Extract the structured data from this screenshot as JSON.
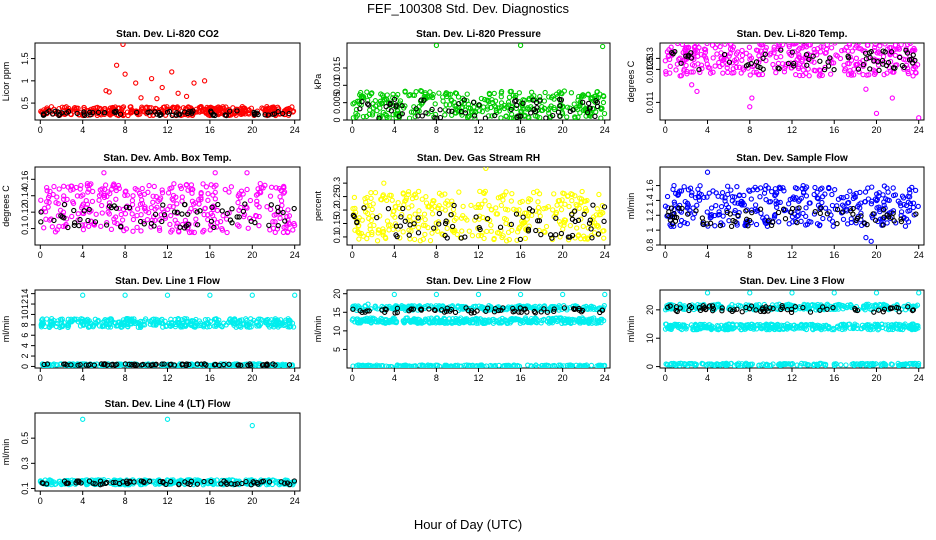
{
  "title": "FEF_100308  Std. Dev. Diagnostics",
  "xlabel": "Hour of Day (UTC)",
  "colors": {
    "black": "#000000",
    "red": "#ff0000",
    "green": "#00cc00",
    "magenta": "#ff00ff",
    "yellow": "#ffff00",
    "blue": "#0000ff",
    "cyan": "#00eeee"
  },
  "chart_data": [
    {
      "type": "scatter",
      "title": "Stan. Dev. Li-820 CO2",
      "ylabel": "Licor ppm",
      "color": "#ff0000",
      "ylim": [
        0.12,
        1.85
      ],
      "yticks": [
        0.5,
        1.0,
        1.5
      ],
      "xlim": [
        -0.5,
        24.5
      ],
      "xticks": [
        0,
        4,
        8,
        12,
        16,
        20,
        24
      ],
      "band": [
        0.22,
        0.42
      ],
      "black_band": [
        0.22,
        0.33
      ],
      "outliers": [
        [
          7.8,
          1.82
        ],
        [
          7.2,
          1.35
        ],
        [
          8.0,
          1.15
        ],
        [
          6.5,
          0.75
        ],
        [
          6.2,
          0.78
        ],
        [
          9.0,
          0.95
        ],
        [
          10.5,
          1.05
        ],
        [
          11.5,
          0.85
        ],
        [
          12.4,
          1.2
        ],
        [
          13.0,
          0.72
        ],
        [
          13.8,
          0.65
        ],
        [
          14.5,
          0.95
        ],
        [
          15.5,
          1.0
        ],
        [
          11.0,
          0.6
        ],
        [
          9.5,
          0.62
        ]
      ]
    },
    {
      "type": "scatter",
      "title": "Stan. Dev. Li-820 Pressure",
      "ylabel": "kPa",
      "color": "#00cc00",
      "ylim": [
        0.0,
        0.0222
      ],
      "yticks": [
        0.0,
        0.005,
        0.01,
        0.015
      ],
      "xlim": [
        -0.5,
        24.5
      ],
      "xticks": [
        0,
        4,
        8,
        12,
        16,
        20,
        24
      ],
      "band": [
        0.0005,
        0.0085
      ],
      "black_band": [
        0.0005,
        0.006
      ],
      "outliers": [
        [
          8.0,
          0.0215
        ],
        [
          16.0,
          0.0215
        ],
        [
          23.8,
          0.0212
        ]
      ]
    },
    {
      "type": "scatter",
      "title": "Stan. Dev. Li-820 Temp.",
      "ylabel": "degrees C",
      "color": "#ff00ff",
      "ylim": [
        0.0102,
        0.0137
      ],
      "yticks": [
        0.011,
        0.0125,
        0.013
      ],
      "xlim": [
        -0.5,
        24.5
      ],
      "xticks": [
        0,
        4,
        8,
        12,
        16,
        20,
        24
      ],
      "band": [
        0.0122,
        0.0137
      ],
      "black_band": [
        0.0124,
        0.0134
      ],
      "outliers": [
        [
          3.0,
          0.0115
        ],
        [
          8.0,
          0.0108
        ],
        [
          8.2,
          0.0112
        ],
        [
          20.0,
          0.0105
        ],
        [
          21.5,
          0.0112
        ],
        [
          24.0,
          0.0103
        ],
        [
          2.5,
          0.0118
        ],
        [
          19.0,
          0.0116
        ]
      ]
    },
    {
      "type": "scatter",
      "title": "Stan. Dev. Amb. Box Temp.",
      "ylabel": "degrees C",
      "color": "#ff00ff",
      "ylim": [
        0.08,
        0.175
      ],
      "yticks": [
        0.1,
        0.12,
        0.14,
        0.16
      ],
      "xlim": [
        -0.5,
        24.5
      ],
      "xticks": [
        0,
        4,
        8,
        12,
        16,
        20,
        24
      ],
      "band": [
        0.095,
        0.155
      ],
      "black_band": [
        0.1,
        0.13
      ],
      "outliers": [
        [
          6.0,
          0.168
        ],
        [
          16.5,
          0.168
        ],
        [
          19.5,
          0.168
        ]
      ]
    },
    {
      "type": "scatter",
      "title": "Stan. Dev. Gas Stream RH",
      "ylabel": "percent",
      "color": "#ffff00",
      "ylim": [
        0.07,
        0.36
      ],
      "yticks": [
        0.1,
        0.15,
        0.2,
        0.25,
        0.3
      ],
      "xlim": [
        -0.5,
        24.5
      ],
      "xticks": [
        0,
        4,
        8,
        12,
        16,
        20,
        24
      ],
      "band": [
        0.085,
        0.27
      ],
      "black_band": [
        0.09,
        0.22
      ],
      "outliers": [
        [
          12.7,
          0.355
        ],
        [
          3.0,
          0.3
        ]
      ]
    },
    {
      "type": "scatter",
      "title": "Stan. Dev. Sample Flow",
      "ylabel": "ml/min",
      "color": "#0000ff",
      "ylim": [
        0.8,
        1.85
      ],
      "yticks": [
        0.8,
        1.0,
        1.2,
        1.4,
        1.6
      ],
      "xlim": [
        -0.5,
        24.5
      ],
      "xticks": [
        0,
        4,
        8,
        12,
        16,
        20,
        24
      ],
      "band": [
        1.05,
        1.6
      ],
      "black_band": [
        1.05,
        1.3
      ],
      "outliers": [
        [
          4.0,
          1.78
        ],
        [
          19.5,
          0.85
        ],
        [
          19.0,
          0.9
        ]
      ]
    },
    {
      "type": "scatter",
      "title": "Stan. Dev. Line 1 Flow",
      "ylabel": "ml/min",
      "color": "#00eeee",
      "ylim": [
        -0.3,
        14.7
      ],
      "yticks": [
        0,
        2,
        4,
        6,
        8,
        10,
        12,
        14
      ],
      "xlim": [
        -0.5,
        24.5
      ],
      "xticks": [
        0,
        4,
        8,
        12,
        16,
        20,
        24
      ],
      "band": [
        7.5,
        9.2
      ],
      "black_band": [
        0.2,
        0.5
      ],
      "low_band": [
        0.1,
        0.5
      ],
      "outliers": [
        [
          4.0,
          13.7
        ],
        [
          8.0,
          13.7
        ],
        [
          12.0,
          13.7
        ],
        [
          16.0,
          13.7
        ],
        [
          20.0,
          13.7
        ],
        [
          24.0,
          13.7
        ]
      ]
    },
    {
      "type": "scatter",
      "title": "Stan. Dev. Line 2 Flow",
      "ylabel": "ml/min",
      "color": "#00eeee",
      "ylim": [
        0,
        21
      ],
      "yticks": [
        5,
        10,
        15,
        20
      ],
      "xlim": [
        -0.5,
        24.5
      ],
      "xticks": [
        0,
        4,
        8,
        12,
        16,
        20,
        24
      ],
      "band": [
        12,
        13.5
      ],
      "band2": [
        15.5,
        16.8
      ],
      "black_band": [
        14.8,
        16.2
      ],
      "low_band": [
        0.3,
        0.8
      ],
      "outliers": [
        [
          4.0,
          19.8
        ],
        [
          8.0,
          19.8
        ],
        [
          12.0,
          19.8
        ],
        [
          16.0,
          19.8
        ],
        [
          20.0,
          19.8
        ],
        [
          24.0,
          19.8
        ],
        [
          1.5,
          17.2
        ]
      ]
    },
    {
      "type": "scatter",
      "title": "Stan. Dev. Line 3 Flow",
      "ylabel": "ml/min",
      "color": "#00eeee",
      "ylim": [
        -0.5,
        27
      ],
      "yticks": [
        0,
        10,
        20
      ],
      "xlim": [
        -0.5,
        24.5
      ],
      "xticks": [
        0,
        4,
        8,
        12,
        16,
        20,
        24
      ],
      "band": [
        13,
        15
      ],
      "band2": [
        20,
        22
      ],
      "black_band": [
        19,
        21.5
      ],
      "low_band": [
        0.3,
        1.2
      ],
      "outliers": [
        [
          4.0,
          26
        ],
        [
          8.0,
          26
        ],
        [
          12.0,
          26
        ],
        [
          16.0,
          26
        ],
        [
          20.0,
          26
        ],
        [
          24.0,
          26
        ]
      ]
    },
    {
      "type": "scatter",
      "title": "Stan. Dev. Line 4 (LT) Flow",
      "ylabel": "ml/min",
      "color": "#00eeee",
      "ylim": [
        0.08,
        0.7
      ],
      "yticks": [
        0.1,
        0.3,
        0.5
      ],
      "xlim": [
        -0.5,
        24.5
      ],
      "xticks": [
        0,
        4,
        8,
        12,
        16,
        20,
        24
      ],
      "band": [
        0.13,
        0.17
      ],
      "black_band": [
        0.13,
        0.16
      ],
      "outliers": [
        [
          4.0,
          0.65
        ],
        [
          12.0,
          0.65
        ],
        [
          20.0,
          0.6
        ]
      ]
    }
  ]
}
